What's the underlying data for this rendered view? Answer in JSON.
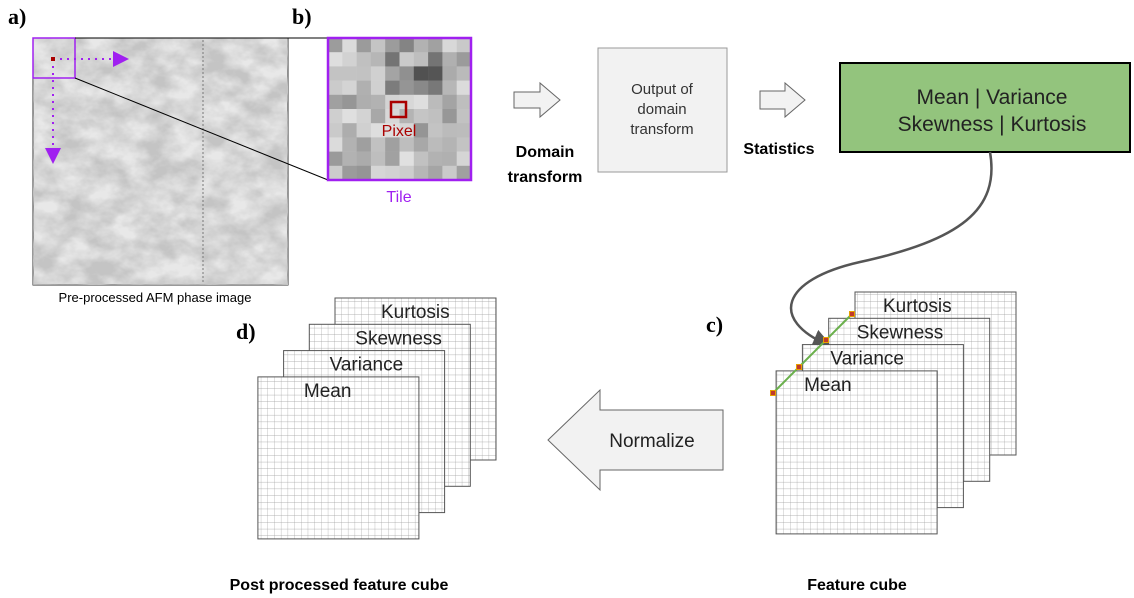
{
  "panel_labels": [
    "a)",
    "b)",
    "c)",
    "d)"
  ],
  "afm_image": {
    "caption": "Pre-processed AFM phase image"
  },
  "tile": {
    "pixel_label": "Pixel",
    "tile_label": "Tile"
  },
  "domain_transform": {
    "label_lines": [
      "Domain",
      "transform"
    ]
  },
  "output_box": {
    "lines": [
      "Output of",
      "domain",
      "transform"
    ]
  },
  "statistics": {
    "label": "Statistics"
  },
  "statistics_box": {
    "lines": [
      "Mean | Variance",
      "Skewness | Kurtosis"
    ]
  },
  "feature_cube": {
    "layers": [
      "Kurtosis",
      "Skewness",
      "Variance",
      "Mean"
    ],
    "caption": "Feature cube"
  },
  "normalize": {
    "label": "Normalize"
  },
  "post_cube": {
    "layers": [
      "Kurtosis",
      "Skewness",
      "Variance",
      "Mean"
    ],
    "caption": "Post processed feature cube"
  }
}
